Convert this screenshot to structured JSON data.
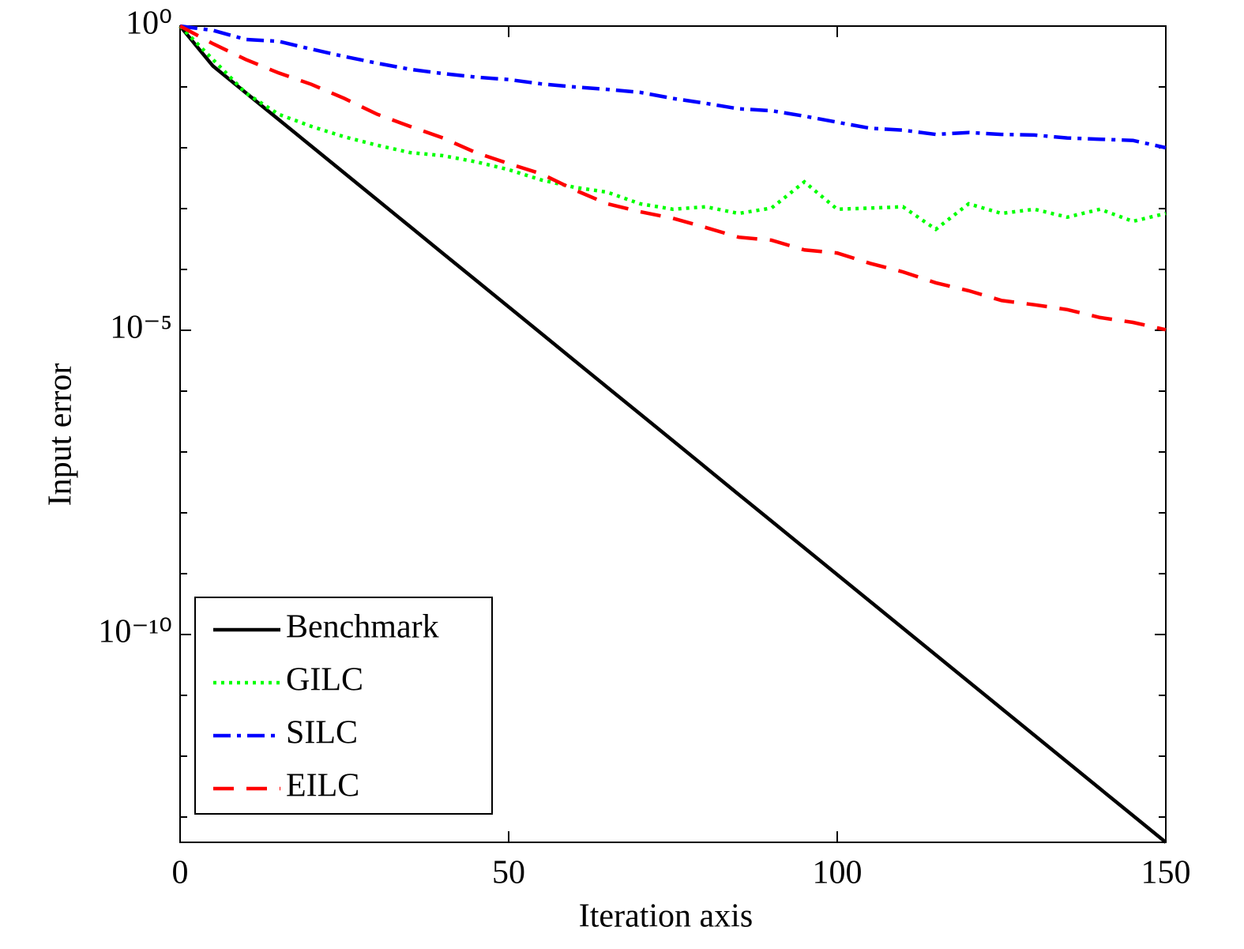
{
  "chart_data": {
    "type": "line",
    "xlabel": "Iteration axis",
    "ylabel": "Input error",
    "x": [
      0,
      5,
      10,
      15,
      20,
      25,
      30,
      35,
      40,
      45,
      50,
      55,
      60,
      65,
      70,
      75,
      80,
      85,
      90,
      95,
      100,
      105,
      110,
      115,
      120,
      125,
      130,
      135,
      140,
      145,
      150
    ],
    "series": [
      {
        "name": "Benchmark",
        "color": "#000000",
        "dash": "solid",
        "values": [
          1,
          0.221,
          0.0802,
          0.0291,
          0.01057,
          0.00384,
          0.001393,
          0.000506,
          0.0001837,
          6.67e-05,
          2.42e-05,
          8.79e-06,
          3.19e-06,
          1.159e-06,
          4.21e-07,
          1.528e-07,
          5.55e-08,
          2.01e-08,
          7.31e-09,
          2.65e-09,
          9.64e-10,
          3.5e-10,
          1.271e-10,
          4.61e-11,
          1.675e-11,
          6.08e-12,
          2.21e-12,
          8.02e-13,
          2.91e-13,
          1.057e-13,
          3.84e-14
        ]
      },
      {
        "name": "GILC",
        "color": "#00ff00",
        "dash": "dotted",
        "values": [
          1,
          0.282,
          0.0794,
          0.0355,
          0.0224,
          0.0151,
          0.011,
          0.00832,
          0.00741,
          0.00589,
          0.00437,
          0.00295,
          0.00224,
          0.00186,
          0.0012,
          0.000977,
          0.00107,
          0.000832,
          0.00102,
          0.00275,
          0.000977,
          0.00102,
          0.00107,
          0.000457,
          0.0012,
          0.000832,
          0.000977,
          0.000724,
          0.000977,
          0.000617,
          0.000832
        ]
      },
      {
        "name": "SILC",
        "color": "#0000ff",
        "dash": "dashdot",
        "values": [
          1,
          0.851,
          0.603,
          0.562,
          0.417,
          0.316,
          0.245,
          0.195,
          0.166,
          0.145,
          0.132,
          0.112,
          0.1,
          0.0912,
          0.0813,
          0.0646,
          0.0537,
          0.0437,
          0.0407,
          0.0331,
          0.0263,
          0.0209,
          0.0195,
          0.0166,
          0.0178,
          0.0166,
          0.0162,
          0.0145,
          0.0138,
          0.0132,
          0.01
        ]
      },
      {
        "name": "EILC",
        "color": "#ff0000",
        "dash": "dashed",
        "values": [
          1,
          0.513,
          0.282,
          0.17,
          0.11,
          0.0646,
          0.0355,
          0.0224,
          0.0145,
          0.00832,
          0.0055,
          0.00372,
          0.00204,
          0.0012,
          0.000891,
          0.000692,
          0.00049,
          0.000339,
          0.000302,
          0.000209,
          0.000186,
          0.000126,
          9.12e-05,
          6.03e-05,
          4.47e-05,
          3.09e-05,
          2.63e-05,
          2.19e-05,
          1.62e-05,
          1.35e-05,
          1.02e-05
        ]
      }
    ],
    "xlim": [
      0,
      150
    ],
    "xticks": [
      0,
      50,
      100,
      150
    ],
    "ylim": [
      3.84e-14,
      1
    ],
    "yscale": "log",
    "yticks": [
      {
        "value": 1,
        "label": "10⁰"
      },
      {
        "value": 1e-05,
        "label": "10⁻⁵"
      },
      {
        "value": 1e-10,
        "label": "10⁻¹⁰"
      }
    ],
    "yminorticks": [
      0.1,
      0.01,
      0.001,
      0.0001,
      1e-06,
      1e-07,
      1e-08,
      1e-09,
      1e-11,
      1e-12,
      1e-13
    ],
    "legend": "lower left",
    "grid": false
  }
}
